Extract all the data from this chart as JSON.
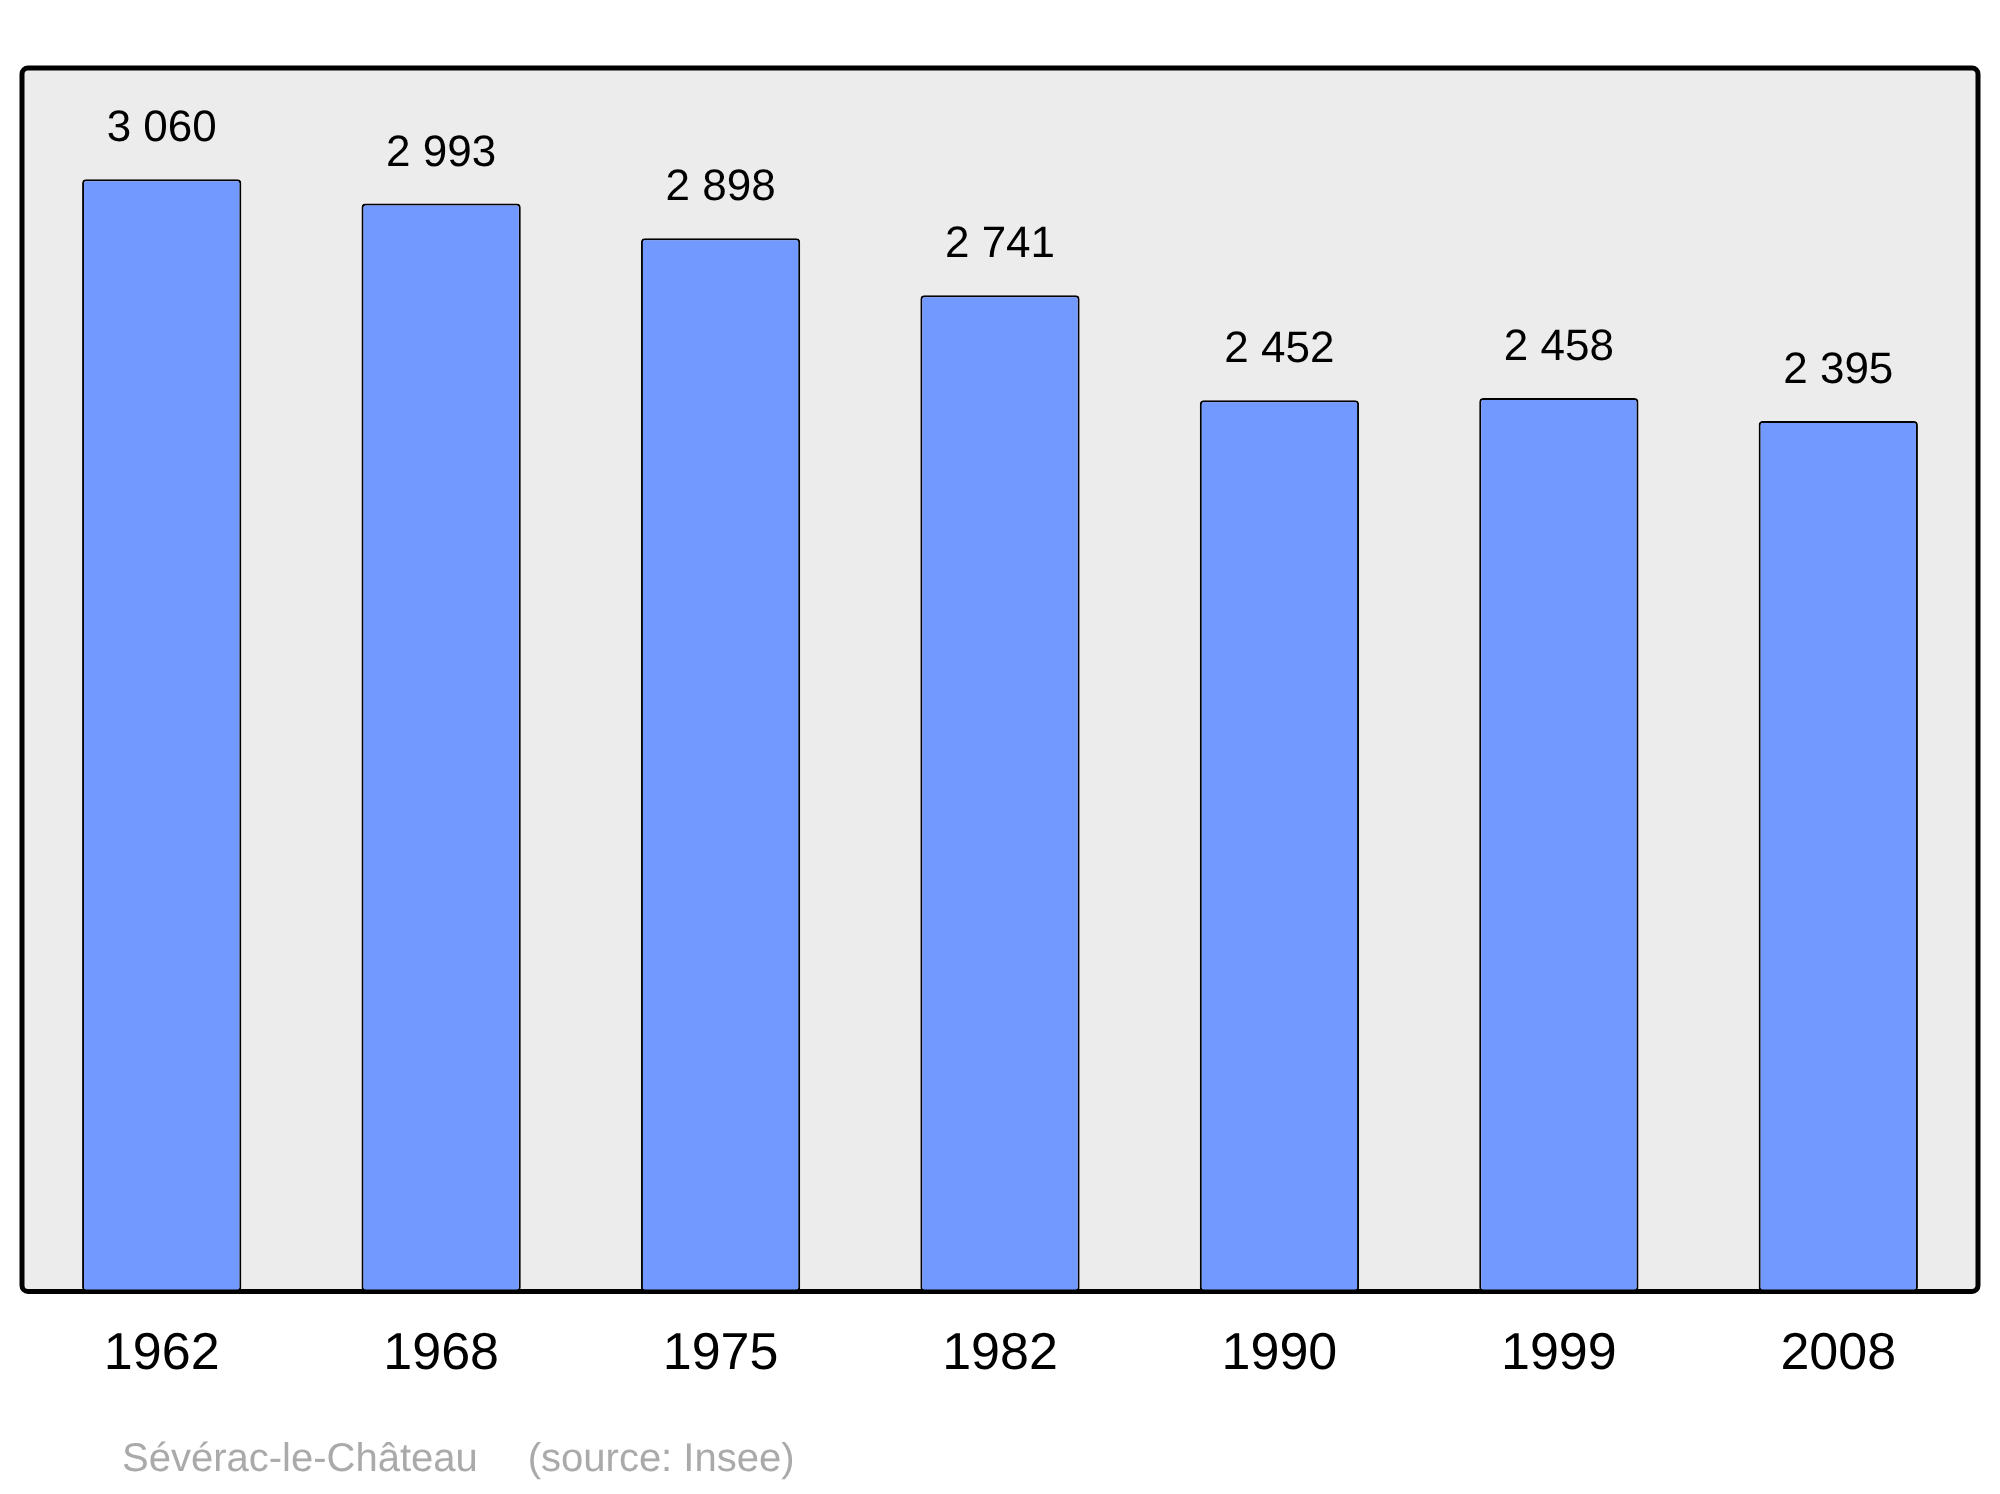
{
  "chart_data": {
    "type": "bar",
    "categories": [
      "1962",
      "1968",
      "1975",
      "1982",
      "1990",
      "1999",
      "2008"
    ],
    "values": [
      3060,
      2993,
      2898,
      2741,
      2452,
      2458,
      2395
    ],
    "value_labels": [
      "3 060",
      "2 993",
      "2 898",
      "2 741",
      "2 452",
      "2 458",
      "2 395"
    ],
    "color": "#7299ff",
    "grid": false,
    "legend": false,
    "annotations": [
      "Sévérac-le-Château",
      "(source: Insee)"
    ]
  }
}
